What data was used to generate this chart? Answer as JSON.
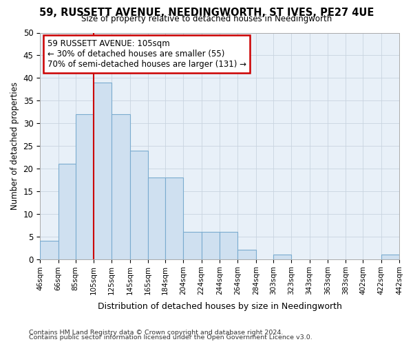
{
  "title": "59, RUSSETT AVENUE, NEEDINGWORTH, ST IVES, PE27 4UE",
  "subtitle": "Size of property relative to detached houses in Needingworth",
  "xlabel": "Distribution of detached houses by size in Needingworth",
  "ylabel": "Number of detached properties",
  "bins": [
    46,
    66,
    85,
    105,
    125,
    145,
    165,
    184,
    204,
    224,
    244,
    264,
    284,
    303,
    323,
    343,
    363,
    383,
    402,
    422,
    442
  ],
  "counts": [
    4,
    21,
    32,
    39,
    32,
    24,
    18,
    18,
    6,
    6,
    6,
    2,
    0,
    1,
    0,
    0,
    0,
    0,
    0,
    1
  ],
  "bar_color": "#cfe0f0",
  "bar_edge_color": "#7aabcf",
  "property_size": 105,
  "red_line_color": "#cc0000",
  "annotation_line1": "59 RUSSETT AVENUE: 105sqm",
  "annotation_line2": "← 30% of detached houses are smaller (55)",
  "annotation_line3": "70% of semi-detached houses are larger (131) →",
  "annotation_box_color": "white",
  "annotation_box_edge_color": "#cc0000",
  "ylim": [
    0,
    50
  ],
  "yticks": [
    0,
    5,
    10,
    15,
    20,
    25,
    30,
    35,
    40,
    45,
    50
  ],
  "tick_labels": [
    "46sqm",
    "66sqm",
    "85sqm",
    "105sqm",
    "125sqm",
    "145sqm",
    "165sqm",
    "184sqm",
    "204sqm",
    "224sqm",
    "244sqm",
    "264sqm",
    "284sqm",
    "303sqm",
    "323sqm",
    "343sqm",
    "363sqm",
    "383sqm",
    "402sqm",
    "422sqm",
    "442sqm"
  ],
  "plot_bg_color": "#e8f0f8",
  "grid_color": "#c8d4e0",
  "footer1": "Contains HM Land Registry data © Crown copyright and database right 2024.",
  "footer2": "Contains public sector information licensed under the Open Government Licence v3.0."
}
